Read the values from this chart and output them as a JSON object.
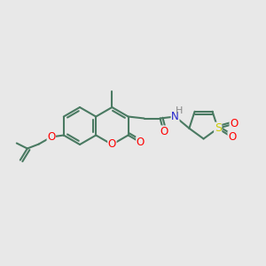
{
  "bg_color": "#e8e8e8",
  "bond_color": "#4a7a62",
  "bond_width": 1.5,
  "atom_colors": {
    "O": "#ff0000",
    "N": "#2222cc",
    "S": "#cccc00",
    "C": "#4a7a62",
    "H": "#888888"
  },
  "font_size": 8.5
}
